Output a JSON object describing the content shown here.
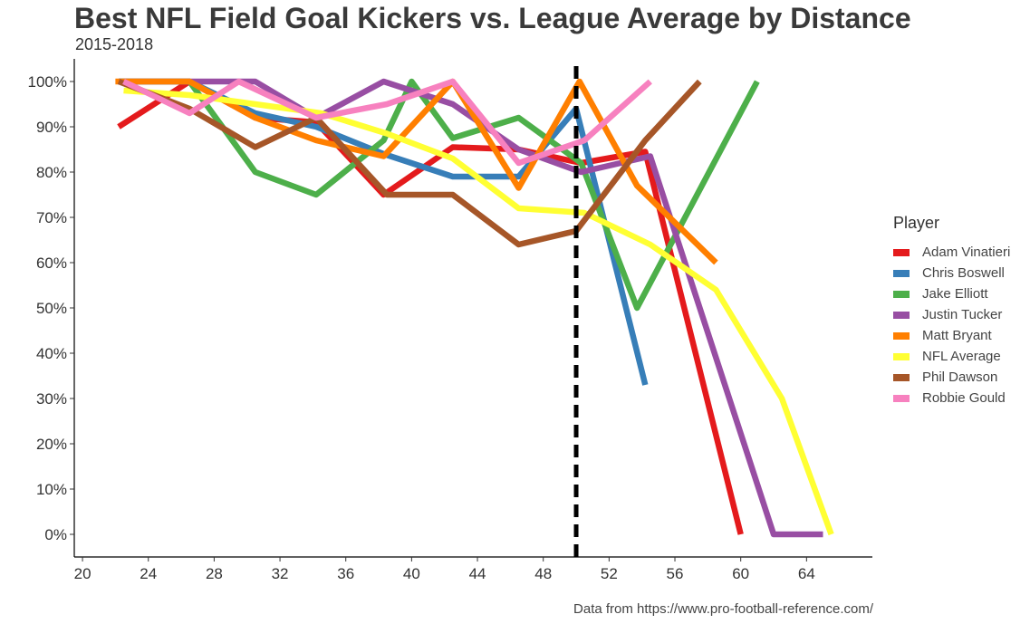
{
  "chart_data": {
    "type": "line",
    "title": "Best NFL Field Goal Kickers vs. League Average by Distance",
    "subtitle": "2015-2018",
    "caption": "Data from https://www.pro-football-reference.com/",
    "xlabel": "",
    "ylabel": "",
    "xlim": [
      19.5,
      68
    ],
    "ylim": [
      -0.05,
      1.05
    ],
    "x_ticks": [
      20,
      24,
      28,
      32,
      36,
      40,
      44,
      48,
      52,
      56,
      60,
      64
    ],
    "x_tick_labels": [
      "20",
      "24",
      "28",
      "32",
      "36",
      "40",
      "44",
      "48",
      "52",
      "56",
      "60",
      "64"
    ],
    "y_ticks": [
      0,
      0.1,
      0.2,
      0.3,
      0.4,
      0.5,
      0.6,
      0.7,
      0.8,
      0.9,
      1.0
    ],
    "y_tick_labels": [
      "0%",
      "10%",
      "20%",
      "30%",
      "40%",
      "50%",
      "60%",
      "70%",
      "80%",
      "90%",
      "100%"
    ],
    "grid": false,
    "vline": {
      "x": 50,
      "style": "dashed",
      "color": "#000000"
    },
    "legend": {
      "title": "Player",
      "position": "right"
    },
    "series": [
      {
        "name": "Adam Vinatieri",
        "color": "#E41A1C",
        "points": [
          [
            22.2,
            0.9
          ],
          [
            26.5,
            1.0
          ],
          [
            30.5,
            0.92
          ],
          [
            34.2,
            0.91
          ],
          [
            38.3,
            0.75
          ],
          [
            42.5,
            0.855
          ],
          [
            46.5,
            0.85
          ],
          [
            50.3,
            0.82
          ],
          [
            54.2,
            0.845
          ],
          [
            60,
            0.0
          ]
        ]
      },
      {
        "name": "Chris Boswell",
        "color": "#377EB8",
        "points": [
          [
            22.2,
            1.0
          ],
          [
            26.5,
            1.0
          ],
          [
            30.5,
            0.93
          ],
          [
            34.2,
            0.9
          ],
          [
            38.3,
            0.84
          ],
          [
            42.5,
            0.79
          ],
          [
            46.5,
            0.79
          ],
          [
            50,
            0.94
          ],
          [
            54.2,
            0.33
          ]
        ]
      },
      {
        "name": "Jake Elliott",
        "color": "#4DAF4A",
        "points": [
          [
            22.2,
            1.0
          ],
          [
            26.5,
            1.0
          ],
          [
            30.5,
            0.8
          ],
          [
            34.2,
            0.75
          ],
          [
            38.3,
            0.87
          ],
          [
            40,
            1.0
          ],
          [
            42.5,
            0.875
          ],
          [
            46.5,
            0.92
          ],
          [
            50.3,
            0.82
          ],
          [
            53.7,
            0.5
          ],
          [
            61,
            1.0
          ]
        ]
      },
      {
        "name": "Justin Tucker",
        "color": "#984EA3",
        "points": [
          [
            22.2,
            1.0
          ],
          [
            26.5,
            1.0
          ],
          [
            30.5,
            1.0
          ],
          [
            34.2,
            0.92
          ],
          [
            38.3,
            1.0
          ],
          [
            42.5,
            0.95
          ],
          [
            46.5,
            0.85
          ],
          [
            50.3,
            0.8
          ],
          [
            54.5,
            0.835
          ],
          [
            62,
            0.0
          ],
          [
            65,
            0.0
          ]
        ]
      },
      {
        "name": "Matt Bryant",
        "color": "#FF7F00",
        "points": [
          [
            22,
            1.0
          ],
          [
            26.5,
            1.0
          ],
          [
            30.5,
            0.92
          ],
          [
            34.2,
            0.87
          ],
          [
            38.3,
            0.835
          ],
          [
            42.5,
            1.0
          ],
          [
            46.5,
            0.765
          ],
          [
            50.2,
            1.0
          ],
          [
            53.7,
            0.77
          ],
          [
            58.5,
            0.6
          ]
        ]
      },
      {
        "name": "NFL Average",
        "color": "#FFFF33",
        "points": [
          [
            22.5,
            0.98
          ],
          [
            26.5,
            0.97
          ],
          [
            30.5,
            0.95
          ],
          [
            34.5,
            0.93
          ],
          [
            38.5,
            0.885
          ],
          [
            42.5,
            0.83
          ],
          [
            46.5,
            0.72
          ],
          [
            50.5,
            0.71
          ],
          [
            54.5,
            0.64
          ],
          [
            58.5,
            0.54
          ],
          [
            62.5,
            0.3
          ],
          [
            65.5,
            0.0
          ]
        ]
      },
      {
        "name": "Phil Dawson",
        "color": "#A65628",
        "points": [
          [
            22.2,
            1.0
          ],
          [
            26.5,
            0.94
          ],
          [
            30.5,
            0.855
          ],
          [
            34.2,
            0.92
          ],
          [
            38.5,
            0.75
          ],
          [
            42.5,
            0.75
          ],
          [
            46.5,
            0.64
          ],
          [
            50,
            0.67
          ],
          [
            54.2,
            0.87
          ],
          [
            57.5,
            1.0
          ]
        ]
      },
      {
        "name": "Robbie Gould",
        "color": "#F781BF",
        "points": [
          [
            22.5,
            1.0
          ],
          [
            26.5,
            0.93
          ],
          [
            29.5,
            1.0
          ],
          [
            34.2,
            0.92
          ],
          [
            38.5,
            0.95
          ],
          [
            42.5,
            1.0
          ],
          [
            46.5,
            0.82
          ],
          [
            50.5,
            0.87
          ],
          [
            54.5,
            1.0
          ]
        ]
      }
    ]
  }
}
